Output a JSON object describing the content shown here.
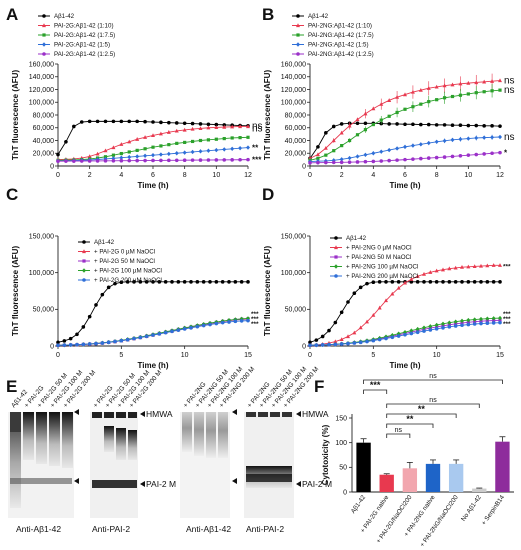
{
  "colors": {
    "abeta": "#000000",
    "ratio_1_10": "#e8394f",
    "ratio_1_7_5": "#2ba12b",
    "ratio_1_5": "#2f6fd8",
    "ratio_1_2_5": "#9b30c9",
    "bar_red": "#e8394f",
    "bar_pink": "#f2a6ae",
    "bar_blue": "#1e64c8",
    "bar_lightblue": "#a9c9ef",
    "bar_grey": "#cccccc",
    "bar_purple": "#8e2c9c"
  },
  "panels": {
    "A": "A",
    "B": "B",
    "C": "C",
    "D": "D",
    "E": "E",
    "F": "F"
  },
  "chart_data": [
    {
      "panel": "A",
      "type": "line",
      "xlabel": "Time (h)",
      "ylabel": "ThT fluorescence (AFU)",
      "xlim": [
        0,
        12
      ],
      "ylim": [
        0,
        160000
      ],
      "xticks": [
        "0",
        "2",
        "4",
        "6",
        "8",
        "10",
        "12"
      ],
      "yticks": [
        "0",
        "20,000",
        "40,000",
        "60,000",
        "80,000",
        "100,000",
        "120,000",
        "140,000",
        "160,000"
      ],
      "x": [
        0,
        0.5,
        1,
        1.5,
        2,
        2.5,
        3,
        3.5,
        4,
        4.5,
        5,
        5.5,
        6,
        6.5,
        7,
        7.5,
        8,
        8.5,
        9,
        9.5,
        10,
        10.5,
        11,
        11.5,
        12
      ],
      "series": [
        {
          "name": "Aβ1-42",
          "color": "#000000",
          "values": [
            18000,
            38000,
            62000,
            69000,
            70000,
            70000,
            70000,
            70000,
            70000,
            70000,
            70000,
            69500,
            69000,
            68500,
            68000,
            67500,
            67000,
            66500,
            66000,
            65500,
            65000,
            64500,
            64000,
            63500,
            63000
          ]
        },
        {
          "name": "PAI-2G:Aβ1-42 (1:10)",
          "color": "#e8394f",
          "values": [
            10000,
            10500,
            11000,
            12500,
            15000,
            19000,
            24000,
            29000,
            34000,
            38000,
            42000,
            45000,
            48000,
            50500,
            53000,
            55000,
            56500,
            58000,
            59000,
            60000,
            60500,
            61000,
            61500,
            62000,
            62000
          ]
        },
        {
          "name": "PAI-2G:Aβ1-42 (1:7.5)",
          "color": "#2ba12b",
          "values": [
            9000,
            9200,
            9500,
            10000,
            11000,
            12500,
            14500,
            17000,
            19500,
            22000,
            24500,
            27000,
            29500,
            31500,
            33500,
            35500,
            37000,
            38500,
            40000,
            41000,
            42000,
            43000,
            44000,
            44500,
            45000
          ]
        },
        {
          "name": "PAI-2G:Aβ1-42 (1:5)",
          "color": "#2f6fd8",
          "values": [
            8000,
            8200,
            8500,
            9000,
            9500,
            10200,
            11000,
            12000,
            13000,
            14000,
            15000,
            16000,
            17000,
            18000,
            19000,
            20000,
            21000,
            22000,
            23000,
            24000,
            25000,
            26000,
            27000,
            28000,
            29000
          ]
        },
        {
          "name": "PAI-2G:Aβ1-42 (1:2.5)",
          "color": "#9b30c9",
          "values": [
            7500,
            7600,
            7700,
            7800,
            7900,
            8000,
            8100,
            8200,
            8300,
            8400,
            8500,
            8600,
            8700,
            8800,
            8900,
            9000,
            9100,
            9200,
            9300,
            9400,
            9500,
            9600,
            9700,
            9800,
            10000
          ]
        }
      ],
      "annotations": [
        "ns",
        "ns",
        "**",
        "***"
      ]
    },
    {
      "panel": "B",
      "type": "line",
      "xlabel": "Time (h)",
      "ylabel": "ThT fluorescence (AFU)",
      "xlim": [
        0,
        12
      ],
      "ylim": [
        0,
        160000
      ],
      "xticks": [
        "0",
        "2",
        "4",
        "6",
        "8",
        "10",
        "12"
      ],
      "yticks": [
        "0",
        "20,000",
        "40,000",
        "60,000",
        "80,000",
        "100,000",
        "120,000",
        "140,000",
        "160,000"
      ],
      "x": [
        0,
        0.5,
        1,
        1.5,
        2,
        2.5,
        3,
        3.5,
        4,
        4.5,
        5,
        5.5,
        6,
        6.5,
        7,
        7.5,
        8,
        8.5,
        9,
        9.5,
        10,
        10.5,
        11,
        11.5,
        12
      ],
      "series": [
        {
          "name": "Aβ1-42",
          "color": "#000000",
          "values": [
            12000,
            30000,
            52000,
            62000,
            66000,
            67000,
            67000,
            67000,
            67000,
            66500,
            66000,
            66000,
            65500,
            65500,
            65000,
            65000,
            64500,
            64500,
            64000,
            64000,
            63500,
            63500,
            63000,
            63000,
            62500
          ]
        },
        {
          "name": "PAI-2NG:Aβ1-42 (1:10)",
          "color": "#e8394f",
          "values": [
            12000,
            18000,
            28000,
            40000,
            52000,
            63000,
            73000,
            82000,
            90000,
            97000,
            103000,
            108000,
            112000,
            116000,
            119000,
            122000,
            124000,
            126000,
            127500,
            129000,
            130000,
            131000,
            132000,
            133000,
            134000
          ]
        },
        {
          "name": "PAI-2NG:Aβ1-42 (1:7.5)",
          "color": "#2ba12b",
          "values": [
            9000,
            12000,
            17000,
            24000,
            32000,
            40000,
            49000,
            57000,
            65000,
            72000,
            78000,
            84000,
            89000,
            93000,
            97000,
            101000,
            104000,
            107000,
            109000,
            111000,
            113000,
            115000,
            116500,
            118000,
            119000
          ]
        },
        {
          "name": "PAI-2NG:Aβ1-42 (1:5)",
          "color": "#2f6fd8",
          "values": [
            7000,
            7500,
            8000,
            9000,
            10500,
            12500,
            15000,
            17500,
            20000,
            22500,
            25000,
            27500,
            30000,
            32000,
            34000,
            36000,
            38000,
            39500,
            41000,
            42000,
            43000,
            44000,
            44500,
            45000,
            45500
          ]
        },
        {
          "name": "PAI-2NG:Aβ1-42 (1:2.5)",
          "color": "#9b30c9",
          "values": [
            5000,
            5200,
            5400,
            5600,
            5800,
            6000,
            6300,
            6700,
            7200,
            7800,
            8500,
            9200,
            10000,
            10800,
            11600,
            12400,
            13200,
            14000,
            15000,
            16000,
            17000,
            18000,
            19000,
            20000,
            21000
          ]
        }
      ],
      "annotations": [
        "ns",
        "ns",
        "ns",
        "*"
      ]
    },
    {
      "panel": "C",
      "type": "line",
      "xlabel": "Time (h)",
      "ylabel": "ThT fluorescence (AFU)",
      "xlim": [
        0,
        15
      ],
      "ylim": [
        0,
        150000
      ],
      "xticks": [
        "0",
        "5",
        "10",
        "15"
      ],
      "yticks": [
        "0",
        "50,000",
        "100,000",
        "150,000"
      ],
      "x": [
        0,
        0.5,
        1,
        1.5,
        2,
        2.5,
        3,
        3.5,
        4,
        4.5,
        5,
        5.5,
        6,
        6.5,
        7,
        7.5,
        8,
        8.5,
        9,
        9.5,
        10,
        10.5,
        11,
        11.5,
        12,
        12.5,
        13,
        13.5,
        14,
        14.5,
        15
      ],
      "series": [
        {
          "name": "Aβ1-42",
          "color": "#000000",
          "values": [
            5000,
            7000,
            10000,
            16000,
            26000,
            40000,
            56000,
            70000,
            80000,
            85000,
            87000,
            87500,
            87500,
            87500,
            87500,
            87500,
            87500,
            87500,
            87500,
            87500,
            87500,
            87500,
            87500,
            87500,
            87500,
            87500,
            87500,
            87500,
            87500,
            87500,
            87500
          ]
        },
        {
          "name": "+ PAI-2G 0 µM NaOCl",
          "color": "#e8394f",
          "values": [
            1000,
            1200,
            1500,
            1800,
            2200,
            2700,
            3300,
            4000,
            5000,
            6000,
            7200,
            8500,
            10000,
            11600,
            13300,
            15000,
            16800,
            18600,
            20400,
            22200,
            24000,
            25700,
            27400,
            29000,
            30500,
            32000,
            33300,
            34500,
            35500,
            36200,
            36800
          ]
        },
        {
          "name": "+ PAI-2G 50 M NaOCl",
          "color": "#9b30c9",
          "values": [
            1000,
            1200,
            1500,
            1800,
            2200,
            2700,
            3300,
            4100,
            5100,
            6200,
            7400,
            8800,
            10300,
            11900,
            13600,
            15400,
            17200,
            19000,
            20800,
            22600,
            24300,
            26000,
            27700,
            29300,
            30800,
            32300,
            33600,
            34800,
            35800,
            36600,
            37200
          ]
        },
        {
          "name": "+ PAI-2G 100 µM NaOCl",
          "color": "#2ba12b",
          "values": [
            1000,
            1200,
            1500,
            1800,
            2200,
            2800,
            3500,
            4300,
            5300,
            6400,
            7700,
            9100,
            10600,
            12200,
            13900,
            15700,
            17500,
            19300,
            21100,
            22900,
            24700,
            26400,
            28100,
            29700,
            31200,
            32700,
            34000,
            35200,
            36200,
            37000,
            37600
          ]
        },
        {
          "name": "+ PAI-2G 200 µM NaOCl",
          "color": "#2f6fd8",
          "values": [
            1000,
            1200,
            1500,
            1800,
            2200,
            2700,
            3300,
            4000,
            5000,
            6000,
            7200,
            8500,
            10000,
            11500,
            13100,
            14800,
            16500,
            18200,
            19900,
            21600,
            23200,
            24800,
            26400,
            27900,
            29300,
            30600,
            31800,
            32800,
            33600,
            34200,
            34600
          ]
        }
      ],
      "annotations": [
        "***",
        "***",
        "***"
      ]
    },
    {
      "panel": "D",
      "type": "line",
      "xlabel": "Time (h)",
      "ylabel": "ThT fluorescence (AFU)",
      "xlim": [
        0,
        15
      ],
      "ylim": [
        0,
        150000
      ],
      "xticks": [
        "0",
        "5",
        "10",
        "15"
      ],
      "yticks": [
        "0",
        "50,000",
        "100,000",
        "150,000"
      ],
      "x": [
        0,
        0.5,
        1,
        1.5,
        2,
        2.5,
        3,
        3.5,
        4,
        4.5,
        5,
        5.5,
        6,
        6.5,
        7,
        7.5,
        8,
        8.5,
        9,
        9.5,
        10,
        10.5,
        11,
        11.5,
        12,
        12.5,
        13,
        13.5,
        14,
        14.5,
        15
      ],
      "series": [
        {
          "name": "Aβ1-42",
          "color": "#000000",
          "values": [
            5000,
            8000,
            13000,
            21000,
            32000,
            46000,
            60000,
            72000,
            80000,
            85000,
            87000,
            87500,
            87500,
            87500,
            87500,
            87500,
            87500,
            87500,
            87500,
            87500,
            87500,
            87500,
            87500,
            87500,
            87500,
            87500,
            87500,
            87500,
            87500,
            87500,
            87500
          ]
        },
        {
          "name": "+ PAI-2NG 0 µM NaOCl",
          "color": "#e8394f",
          "values": [
            1000,
            1500,
            2500,
            4000,
            6000,
            9000,
            13000,
            18000,
            25000,
            33000,
            42000,
            52000,
            62000,
            71000,
            79000,
            86000,
            91000,
            95000,
            98000,
            100500,
            102500,
            104000,
            105500,
            106500,
            107500,
            108000,
            108500,
            109000,
            109500,
            110000,
            110000
          ]
        },
        {
          "name": "+ PAI-2NG 50 M NaOCl",
          "color": "#9b30c9",
          "values": [
            1000,
            1200,
            1500,
            1800,
            2200,
            2800,
            3500,
            4400,
            5500,
            6800,
            8200,
            9800,
            11500,
            13300,
            15200,
            17100,
            19000,
            20900,
            22700,
            24400,
            26000,
            27500,
            28900,
            30200,
            31300,
            32300,
            33100,
            33800,
            34300,
            34700,
            35000
          ]
        },
        {
          "name": "+ PAI-2NG 100 µM NaOCl",
          "color": "#2ba12b",
          "values": [
            1000,
            1200,
            1500,
            1900,
            2400,
            3000,
            3800,
            4800,
            6000,
            7400,
            9000,
            10800,
            12700,
            14700,
            16800,
            18900,
            21000,
            23000,
            25000,
            26900,
            28700,
            30300,
            31800,
            33100,
            34300,
            35300,
            36100,
            36800,
            37300,
            37700,
            38000
          ]
        },
        {
          "name": "+ PAI-2NG 200 µM NaOCl",
          "color": "#2f6fd8",
          "values": [
            1000,
            1200,
            1500,
            1800,
            2200,
            2700,
            3300,
            4100,
            5000,
            6100,
            7400,
            8800,
            10300,
            11900,
            13600,
            15300,
            17000,
            18700,
            20300,
            21900,
            23400,
            24800,
            26100,
            27300,
            28300,
            29200,
            30000,
            30600,
            31100,
            31500,
            31800
          ]
        }
      ],
      "annotations": [
        "***",
        "***",
        "***",
        "***"
      ]
    },
    {
      "panel": "F",
      "type": "bar",
      "ylabel": "Cytotoxicity (%)",
      "ylim": [
        0,
        150
      ],
      "yticks": [
        "0",
        "50",
        "100",
        "150"
      ],
      "categories": [
        "Aβ1-42",
        "+ PAI-2G native",
        "+ PAI-2G/NaOCl200",
        "+ PAI-2NG native",
        "+ PAI-2NG/NaOCl200",
        "No Aβ1-42",
        "+ SerpinB14"
      ],
      "values": [
        100,
        35,
        48,
        57,
        57,
        7,
        102
      ],
      "errors": [
        8,
        2,
        12,
        8,
        8,
        1,
        10
      ],
      "colors": [
        "#000000",
        "#e8394f",
        "#f2a6ae",
        "#1e64c8",
        "#a9c9ef",
        "#cccccc",
        "#8e2c9c"
      ],
      "comparisons": [
        {
          "from": 0,
          "to": 1,
          "label": "***"
        },
        {
          "from": 0,
          "to": 6,
          "label": "ns"
        },
        {
          "from": 1,
          "to": 5,
          "label": "ns"
        },
        {
          "from": 1,
          "to": 4,
          "label": "**"
        },
        {
          "from": 1,
          "to": 3,
          "label": "**"
        },
        {
          "from": 1,
          "to": 2,
          "label": "ns"
        }
      ]
    }
  ],
  "blots": {
    "left_antibody_1": "Anti-Aβ1-42",
    "left_antibody_2": "Anti-PAI-2",
    "right_antibody_1": "Anti-Aβ1-42",
    "right_antibody_2": "Anti-PAI-2",
    "marker_hmwa": "HMWA",
    "marker_pai2m": "PAI-2 M",
    "lanes_left_1": [
      "Aβ1-42",
      "+ PAI-2G",
      "+ PAI-2G 50 M",
      "+ PAI-2G 100 M",
      "+ PAI-2G 200 M"
    ],
    "lanes_left_2": [
      "+ PAI-2G",
      "+ PAI-2G 50 M",
      "+ PAI-2G 100 M",
      "+ PAI-2G 200 M"
    ],
    "lanes_right_1": [
      "+ PAI-2NG",
      "+ PAI-2NG 50 M",
      "+ PAI-2NG 100 M",
      "+ PAI-2NG 200 M"
    ],
    "lanes_right_2": [
      "+ PAI-2NG",
      "+ PAI-2NG 50 M",
      "+ PAI-2NG 100 M",
      "+ PAI-2NG 200 M"
    ]
  }
}
